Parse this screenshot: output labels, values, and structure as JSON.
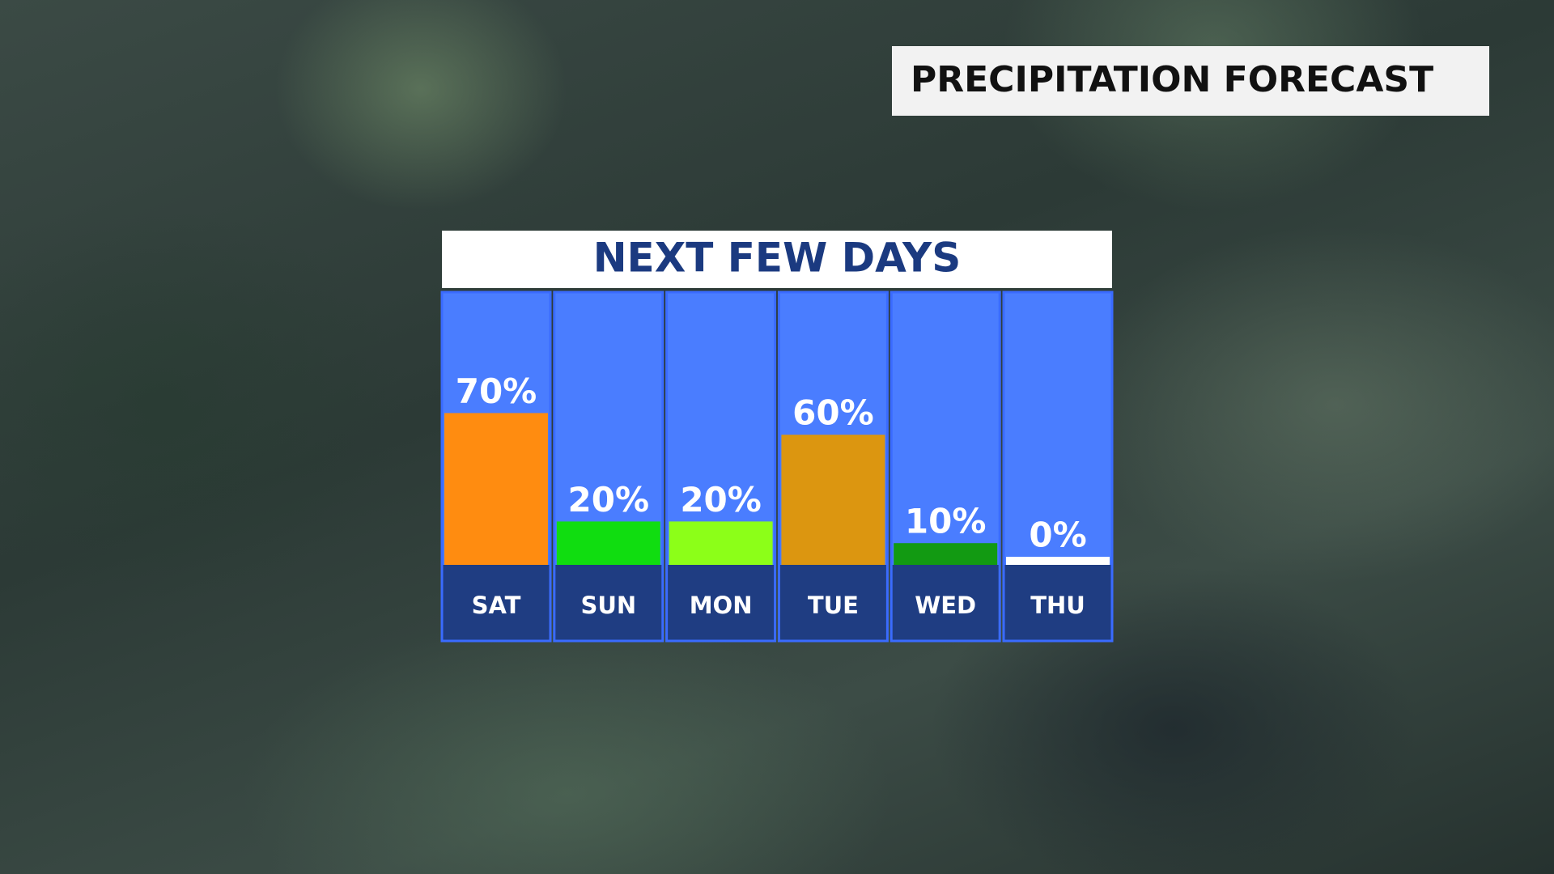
{
  "header": {
    "title": "PRECIPITATION FORECAST"
  },
  "chart_data": {
    "type": "bar",
    "title": "NEXT FEW DAYS",
    "categories": [
      "SAT",
      "SUN",
      "MON",
      "TUE",
      "WED",
      "THU"
    ],
    "values": [
      70,
      20,
      20,
      60,
      10,
      0
    ],
    "value_labels": [
      "70%",
      "20%",
      "20%",
      "60%",
      "10%",
      "0%"
    ],
    "colors": [
      "#ff8c10",
      "#10dd10",
      "#8cff18",
      "#dc9610",
      "#129a12",
      "#ffffff"
    ]
  }
}
